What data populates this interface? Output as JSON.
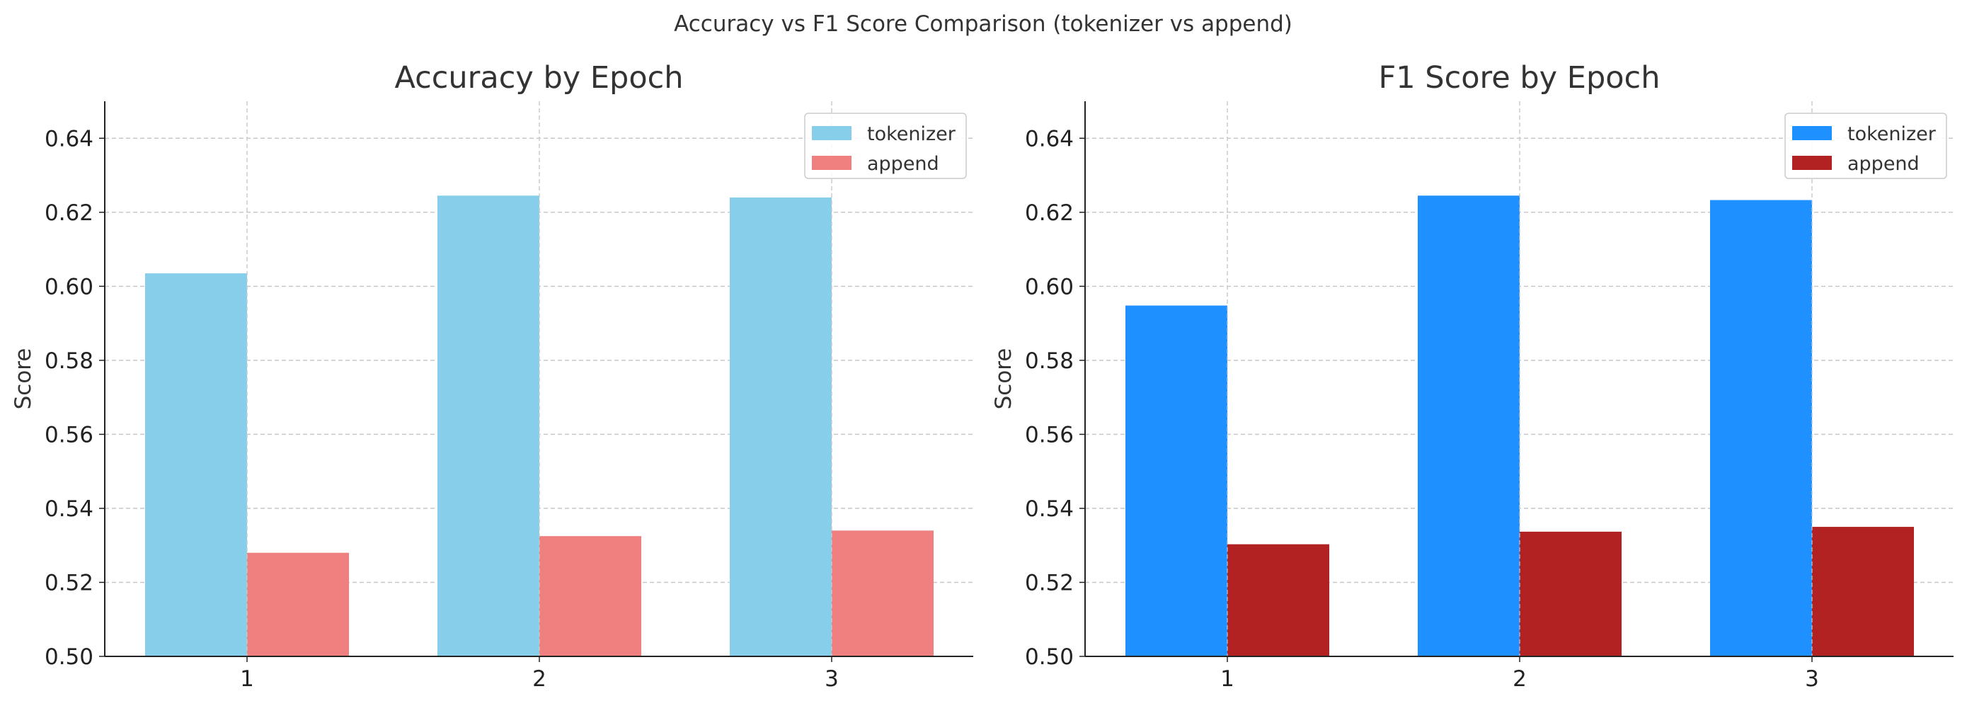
{
  "figure": {
    "suptitle": "Accuracy vs F1 Score Comparison (tokenizer vs append)"
  },
  "chart_data": [
    {
      "type": "bar",
      "title": "Accuracy by Epoch",
      "xlabel": "",
      "ylabel": "Score",
      "categories": [
        "1",
        "2",
        "3"
      ],
      "ylim": [
        0.5,
        0.65
      ],
      "yticks": [
        "0.50",
        "0.52",
        "0.54",
        "0.56",
        "0.58",
        "0.60",
        "0.62",
        "0.64"
      ],
      "grid": true,
      "legend_position": "top-right",
      "series": [
        {
          "name": "tokenizer",
          "color": "#87CEEB",
          "values": [
            0.6035,
            0.6245,
            0.624
          ]
        },
        {
          "name": "append",
          "color": "#F08080",
          "values": [
            0.528,
            0.5325,
            0.534
          ]
        }
      ]
    },
    {
      "type": "bar",
      "title": "F1 Score by Epoch",
      "xlabel": "",
      "ylabel": "Score",
      "categories": [
        "1",
        "2",
        "3"
      ],
      "ylim": [
        0.5,
        0.65
      ],
      "yticks": [
        "0.50",
        "0.52",
        "0.54",
        "0.56",
        "0.58",
        "0.60",
        "0.62",
        "0.64"
      ],
      "grid": true,
      "legend_position": "top-right",
      "series": [
        {
          "name": "tokenizer",
          "color": "#1E90FF",
          "values": [
            0.5948,
            0.6245,
            0.6233
          ]
        },
        {
          "name": "append",
          "color": "#B22222",
          "values": [
            0.5303,
            0.5337,
            0.535
          ]
        }
      ]
    }
  ]
}
